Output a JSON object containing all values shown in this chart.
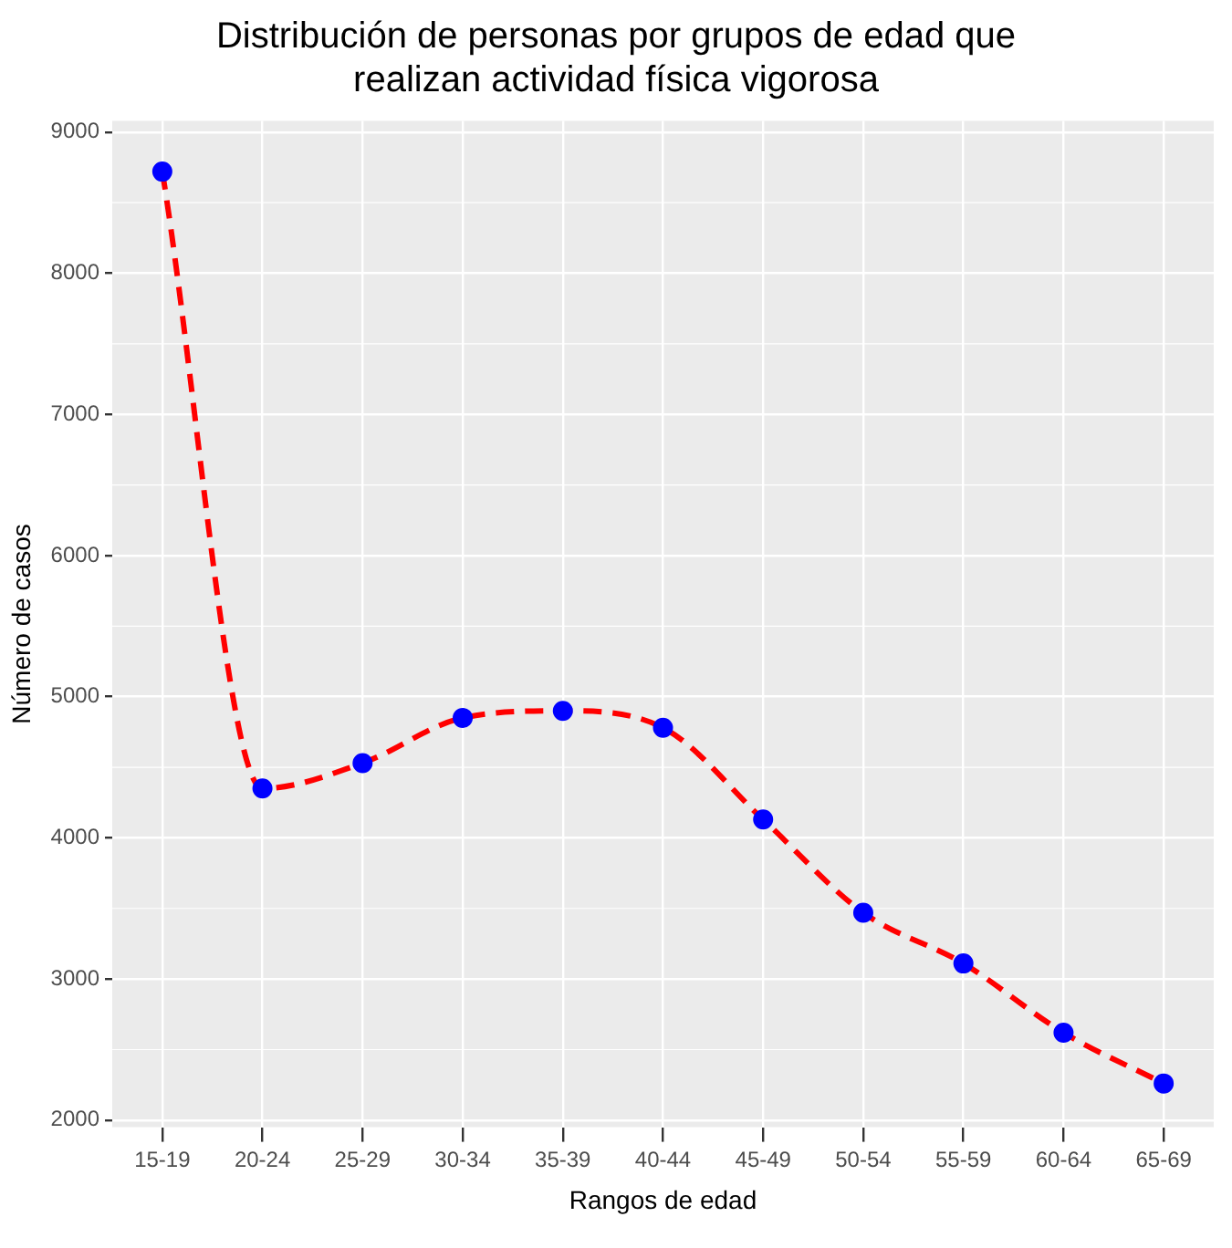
{
  "chart_data": {
    "type": "line",
    "title": "Distribución de personas por grupos de edad que realizan actividad física vigorosa",
    "xlabel": "Rangos de edad",
    "ylabel": "Número de casos",
    "categories": [
      "15-19",
      "20-24",
      "25-29",
      "30-34",
      "35-39",
      "40-44",
      "45-49",
      "50-54",
      "55-59",
      "60-64",
      "65-69"
    ],
    "series": [
      {
        "marker": "none",
        "color": "#ff0000",
        "values": [
          8720,
          4350,
          4530,
          4850,
          4900,
          4780,
          4130,
          3470,
          3110,
          2620,
          2260
        ]
      },
      {
        "type": "scatter",
        "color": "#0000ff",
        "values": [
          8720,
          4350,
          4530,
          4850,
          4900,
          4780,
          4130,
          3470,
          3110,
          2620,
          2260
        ]
      }
    ],
    "ylim": [
      1950,
      9080
    ],
    "yticks": [
      2000,
      3000,
      4000,
      5000,
      6000,
      7000,
      8000,
      9000
    ],
    "grid": true,
    "legend": false,
    "marker": "circle",
    "line_style": "dashed"
  }
}
